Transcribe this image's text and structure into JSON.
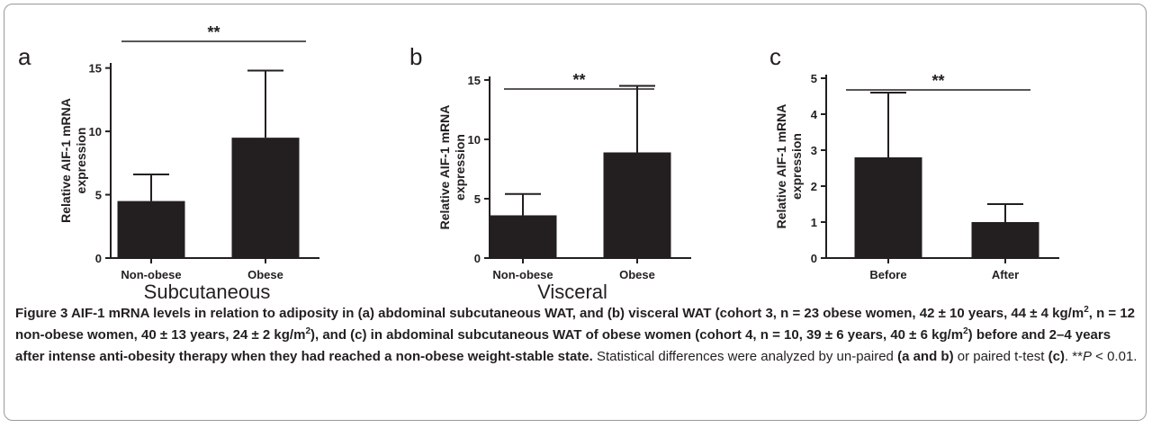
{
  "chart_data": [
    {
      "type": "bar",
      "panel": "a",
      "ylabel": [
        "Relative AIF-1 mRNA",
        "expression"
      ],
      "xlabel": "Subcutaneous",
      "significance": "**",
      "categories": [
        "Non-obese",
        "Obese"
      ],
      "values": [
        4.5,
        9.5
      ],
      "errors": [
        2.1,
        5.3
      ],
      "color": "#231f20",
      "ylim": [
        0,
        15.4
      ],
      "yticks": [
        0,
        5,
        10,
        15
      ]
    },
    {
      "type": "bar",
      "panel": "b",
      "ylabel": [
        "Relative AIF-1 mRNA",
        "expression"
      ],
      "xlabel": "Visceral",
      "significance": "**",
      "categories": [
        "Non-obese",
        "Obese"
      ],
      "values": [
        3.6,
        8.9
      ],
      "errors": [
        1.8,
        5.6
      ],
      "color": "#231f20",
      "ylim": [
        0,
        15.3
      ],
      "yticks": [
        0,
        5,
        10,
        15
      ]
    },
    {
      "type": "bar",
      "panel": "c",
      "ylabel": [
        "Relative AIF-1 mRNA",
        "expression"
      ],
      "significance": "**",
      "categories": [
        "Before",
        "After"
      ],
      "values": [
        2.8,
        1.0
      ],
      "errors": [
        1.8,
        0.5
      ],
      "color": "#231f20",
      "ylim": [
        0,
        5.1
      ],
      "yticks": [
        0,
        1,
        2,
        3,
        4,
        5
      ]
    }
  ],
  "caption": {
    "segments": [
      {
        "text": "Figure 3",
        "style": [
          "bold"
        ]
      },
      {
        "text": " AIF-1 mRNA levels in relation to adiposity in (a) abdominal subcutaneous WAT, and (b) visceral WAT (cohort 3, n = 23 obese women, 42 ± 10 years, 44 ± 4 kg/m",
        "style": [
          "bold"
        ]
      },
      {
        "text": "2",
        "style": [
          "bold",
          "sup"
        ]
      },
      {
        "text": ", n = 12 non-obese women, 40 ± 13 years, 24 ± 2 kg/m",
        "style": [
          "bold"
        ]
      },
      {
        "text": "2",
        "style": [
          "bold",
          "sup"
        ]
      },
      {
        "text": "), and (c) in abdominal subcutaneous WAT of obese women (cohort 4, n = 10, 39 ± 6 years, 40 ± 6 kg/m",
        "style": [
          "bold"
        ]
      },
      {
        "text": "2",
        "style": [
          "bold",
          "sup"
        ]
      },
      {
        "text": ") before and 2–4 years after intense anti-obesity therapy when they had reached a non-obese weight-stable state.",
        "style": [
          "bold"
        ]
      },
      {
        "text": " Statistical differences were analyzed by un-paired ",
        "style": []
      },
      {
        "text": "(a and b)",
        "style": [
          "bold"
        ]
      },
      {
        "text": " or paired t-test ",
        "style": []
      },
      {
        "text": "(c)",
        "style": [
          "bold"
        ]
      },
      {
        "text": ". **",
        "style": []
      },
      {
        "text": "P",
        "style": [
          "italic"
        ]
      },
      {
        "text": " < 0.01.",
        "style": []
      }
    ]
  }
}
